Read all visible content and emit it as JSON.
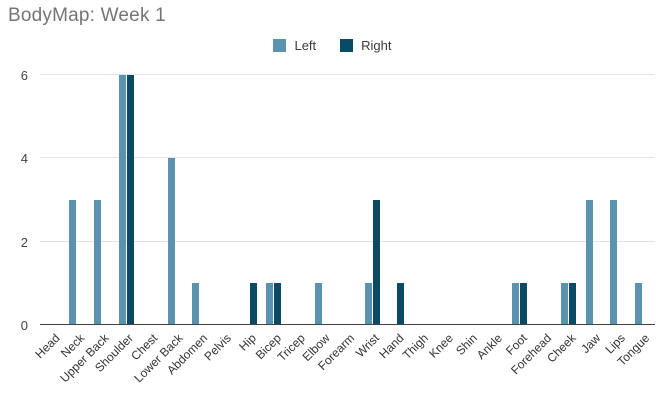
{
  "title": "BodyMap: Week 1",
  "colors": {
    "left_series": "#5a92b0",
    "right_series": "#0b4a64",
    "title_text": "#757575",
    "axis_text": "#444444",
    "x_label_text": "#333333",
    "gridline": "#e3e3e3",
    "baseline": "#424242",
    "background": "#ffffff"
  },
  "chart_data": {
    "type": "bar",
    "title": "BodyMap: Week 1",
    "xlabel": "",
    "ylabel": "",
    "ylim": [
      0,
      6
    ],
    "yticks": [
      0,
      2,
      4,
      6
    ],
    "grid": true,
    "legend_position": "top",
    "categories": [
      "Head",
      "Neck",
      "Upper Back",
      "Shoulder",
      "Chest",
      "Lower Back",
      "Abdomen",
      "Pelvis",
      "Hip",
      "Bicep",
      "Tricep",
      "Elbow",
      "Forearm",
      "Wrist",
      "Hand",
      "Thigh",
      "Knee",
      "Shin",
      "Ankle",
      "Foot",
      "Forehead",
      "Cheek",
      "Jaw",
      "Lips",
      "Tongue"
    ],
    "series": [
      {
        "name": "Left",
        "color": "#5a92b0",
        "values": [
          0,
          3,
          3,
          6,
          0,
          4,
          1,
          0,
          0,
          1,
          0,
          1,
          0,
          1,
          0,
          0,
          0,
          0,
          0,
          1,
          0,
          1,
          3,
          3,
          1
        ]
      },
      {
        "name": "Right",
        "color": "#0b4a64",
        "values": [
          0,
          0,
          0,
          6,
          0,
          0,
          0,
          0,
          1,
          1,
          0,
          0,
          0,
          3,
          1,
          0,
          0,
          0,
          0,
          1,
          0,
          1,
          0,
          0,
          0
        ]
      }
    ]
  }
}
